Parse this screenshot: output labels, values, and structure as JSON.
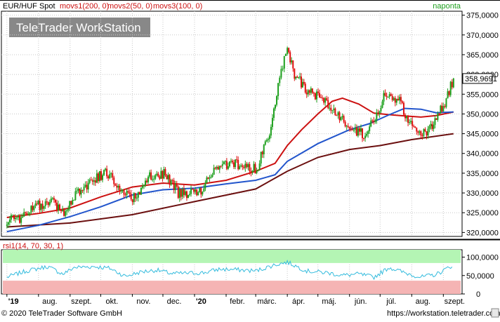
{
  "header": {
    "instrument": "EUR/HUF Spot",
    "ma1_label": "movs1(200, 0)",
    "ma2_label": "movs2(50, 0)",
    "ma3_label": "movs3(100, 0)",
    "period": "naponta"
  },
  "watermark": "TeleTrader WorkStation",
  "rsi_header": "rsi1(14, 70, 30, 1)",
  "footer": {
    "copyright": "© 2020 TeleTrader Software GmbH",
    "url": "https://workstation.teletrader.com/"
  },
  "colors": {
    "up": "#1ea01e",
    "down": "#e01010",
    "ma1": "#6b0f0f",
    "ma2": "#cc1111",
    "ma3": "#2255cc",
    "rsi": "#33bbdd",
    "overbought": "#b4f5b4",
    "oversold": "#f5b4b4",
    "last_label": "#ffffff"
  },
  "chart_data": [
    {
      "type": "candlestick",
      "title": "EUR/HUF Spot",
      "ylim": [
        319000,
        376000
      ],
      "y_ticks": [
        320000,
        325000,
        330000,
        335000,
        340000,
        345000,
        350000,
        355000,
        360000,
        365000,
        370000,
        375000
      ],
      "y_tick_labels": [
        "320,0000",
        "325,0000",
        "330,0000",
        "335,0000",
        "340,0000",
        "345,0000",
        "350,0000",
        "355,0000",
        "360,0000",
        "365,0000",
        "370,0000",
        "375,0000"
      ],
      "x_labels": [
        "'19",
        "aug.",
        "szept.",
        "okt.",
        "nov.",
        "dec.",
        "'20",
        "febr.",
        "márc.",
        "ápr.",
        "máj.",
        "jún.",
        "júl.",
        "aug.",
        "szept."
      ],
      "last_value": 358969.1,
      "last_value_label": "358,9691",
      "price_path": [
        [
          "2019-07-01",
          323200
        ],
        [
          "2019-07-15",
          323800
        ],
        [
          "2019-07-29",
          326500
        ],
        [
          "2019-08-12",
          328000
        ],
        [
          "2019-08-26",
          325500
        ],
        [
          "2019-09-09",
          330500
        ],
        [
          "2019-09-23",
          333000
        ],
        [
          "2019-10-07",
          335500
        ],
        [
          "2019-10-21",
          330500
        ],
        [
          "2019-11-04",
          328500
        ],
        [
          "2019-11-18",
          334000
        ],
        [
          "2019-12-02",
          335000
        ],
        [
          "2019-12-16",
          330000
        ],
        [
          "2020-01-06",
          330000
        ],
        [
          "2020-01-20",
          336000
        ],
        [
          "2020-02-03",
          337500
        ],
        [
          "2020-02-17",
          337000
        ],
        [
          "2020-03-02",
          336000
        ],
        [
          "2020-03-16",
          346500
        ],
        [
          "2020-03-23",
          358000
        ],
        [
          "2020-04-01",
          367000
        ],
        [
          "2020-04-08",
          360000
        ],
        [
          "2020-04-20",
          356000
        ],
        [
          "2020-05-04",
          354000
        ],
        [
          "2020-05-18",
          350000
        ],
        [
          "2020-06-01",
          346500
        ],
        [
          "2020-06-15",
          345000
        ],
        [
          "2020-06-29",
          350000
        ],
        [
          "2020-07-06",
          355500
        ],
        [
          "2020-07-20",
          353000
        ],
        [
          "2020-08-03",
          346000
        ],
        [
          "2020-08-17",
          345500
        ],
        [
          "2020-09-01",
          352000
        ],
        [
          "2020-09-11",
          358969.1
        ]
      ],
      "ma_series": [
        {
          "name": "movs1(200, 0)",
          "points": [
            [
              "2019-07-01",
              321400
            ],
            [
              "2019-09-01",
              322400
            ],
            [
              "2019-11-01",
              324500
            ],
            [
              "2020-01-01",
              327800
            ],
            [
              "2020-03-01",
              331000
            ],
            [
              "2020-04-01",
              335500
            ],
            [
              "2020-05-01",
              339000
            ],
            [
              "2020-06-01",
              341000
            ],
            [
              "2020-07-01",
              342000
            ],
            [
              "2020-08-01",
              343500
            ],
            [
              "2020-09-11",
              345000
            ]
          ]
        },
        {
          "name": "movs2(50, 0)",
          "points": [
            [
              "2019-07-01",
              323800
            ],
            [
              "2019-08-01",
              324800
            ],
            [
              "2019-09-01",
              326200
            ],
            [
              "2019-10-01",
              329000
            ],
            [
              "2019-11-01",
              331500
            ],
            [
              "2019-12-01",
              332500
            ],
            [
              "2020-01-01",
              332000
            ],
            [
              "2020-02-01",
              333200
            ],
            [
              "2020-03-01",
              335500
            ],
            [
              "2020-03-20",
              337500
            ],
            [
              "2020-04-01",
              342000
            ],
            [
              "2020-04-15",
              346000
            ],
            [
              "2020-05-01",
              350000
            ],
            [
              "2020-05-15",
              353200
            ],
            [
              "2020-05-25",
              354000
            ],
            [
              "2020-06-10",
              352500
            ],
            [
              "2020-06-25",
              350200
            ],
            [
              "2020-07-10",
              349800
            ],
            [
              "2020-07-25",
              349500
            ],
            [
              "2020-08-10",
              349200
            ],
            [
              "2020-08-25",
              349600
            ],
            [
              "2020-09-11",
              350500
            ]
          ]
        },
        {
          "name": "movs3(100, 0)",
          "points": [
            [
              "2019-07-01",
              320200
            ],
            [
              "2019-08-01",
              321800
            ],
            [
              "2019-09-01",
              324000
            ],
            [
              "2019-10-01",
              326500
            ],
            [
              "2019-11-01",
              329500
            ],
            [
              "2019-12-01",
              330800
            ],
            [
              "2020-01-01",
              331200
            ],
            [
              "2020-02-01",
              332300
            ],
            [
              "2020-03-01",
              333200
            ],
            [
              "2020-03-20",
              334600
            ],
            [
              "2020-04-01",
              338000
            ],
            [
              "2020-05-01",
              342500
            ],
            [
              "2020-06-01",
              346000
            ],
            [
              "2020-06-20",
              347500
            ],
            [
              "2020-07-10",
              349800
            ],
            [
              "2020-07-25",
              351400
            ],
            [
              "2020-08-10",
              351200
            ],
            [
              "2020-08-25",
              350300
            ],
            [
              "2020-09-11",
              350500
            ]
          ]
        }
      ]
    },
    {
      "type": "line",
      "title": "rsi1(14, 70, 30, 1)",
      "ylim": [
        0,
        120000
      ],
      "y_ticks": [
        0,
        50000,
        100000
      ],
      "y_tick_labels": [
        "0",
        "50,0000",
        "100,0000"
      ],
      "overbought": 70,
      "oversold": 30,
      "series": [
        {
          "name": "rsi1(14, 70, 30, 1)",
          "points": [
            [
              "2019-07-01",
              38
            ],
            [
              "2019-07-20",
              52
            ],
            [
              "2019-08-10",
              62
            ],
            [
              "2019-08-25",
              45
            ],
            [
              "2019-09-05",
              60
            ],
            [
              "2019-09-25",
              62
            ],
            [
              "2019-10-10",
              58
            ],
            [
              "2019-10-25",
              40
            ],
            [
              "2019-11-10",
              50
            ],
            [
              "2019-11-25",
              54
            ],
            [
              "2019-12-10",
              46
            ],
            [
              "2020-01-10",
              48
            ],
            [
              "2020-01-25",
              56
            ],
            [
              "2020-02-10",
              55
            ],
            [
              "2020-03-01",
              52
            ],
            [
              "2020-03-20",
              66
            ],
            [
              "2020-04-01",
              72
            ],
            [
              "2020-04-20",
              52
            ],
            [
              "2020-05-10",
              48
            ],
            [
              "2020-05-25",
              42
            ],
            [
              "2020-06-10",
              45
            ],
            [
              "2020-06-25",
              38
            ],
            [
              "2020-07-10",
              60
            ],
            [
              "2020-07-25",
              48
            ],
            [
              "2020-08-10",
              38
            ],
            [
              "2020-08-25",
              44
            ],
            [
              "2020-09-11",
              66
            ]
          ]
        }
      ]
    }
  ]
}
